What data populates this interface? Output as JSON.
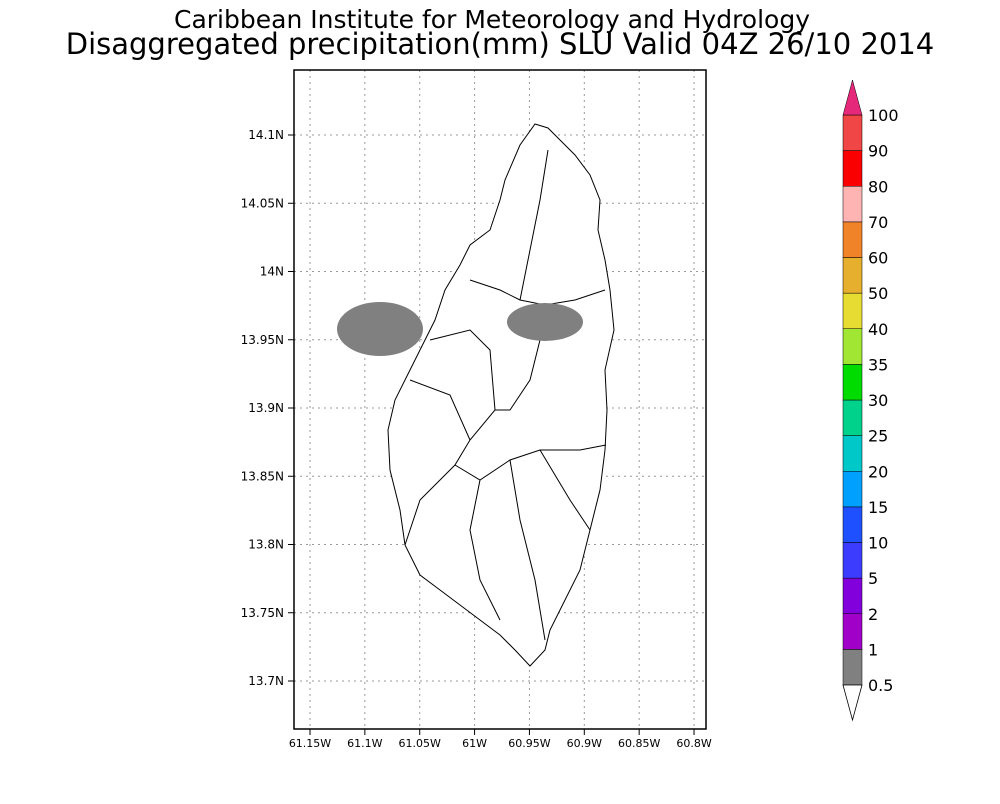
{
  "header": {
    "title": "Caribbean Institute for Meteorology and Hydrology",
    "subtitle": "Disaggregated precipitation(mm) SLU Valid 04Z 26/10 2014"
  },
  "map": {
    "lat_labels": [
      "14.1N",
      "14.05N",
      "14N",
      "13.95N",
      "13.9N",
      "13.85N",
      "13.8N",
      "13.75N",
      "13.7N"
    ],
    "lon_labels": [
      "61.15W",
      "61.1W",
      "61.05W",
      "61W",
      "60.95W",
      "60.9W",
      "60.85W",
      "60.8W"
    ]
  },
  "legend": {
    "levels": [
      "0.5",
      "1",
      "2",
      "5",
      "10",
      "15",
      "20",
      "25",
      "30",
      "35",
      "40",
      "50",
      "60",
      "70",
      "80",
      "90",
      "100"
    ],
    "colors": [
      "#808080",
      "#a000c8",
      "#8200dc",
      "#3c3cff",
      "#1e50ff",
      "#00a0ff",
      "#00c8c8",
      "#00d28c",
      "#00dc00",
      "#a0e632",
      "#e6dc32",
      "#e6af2d",
      "#f08228",
      "#ffb4b4",
      "#fa0000",
      "#f04646"
    ],
    "over_color": "#e6287a"
  }
}
